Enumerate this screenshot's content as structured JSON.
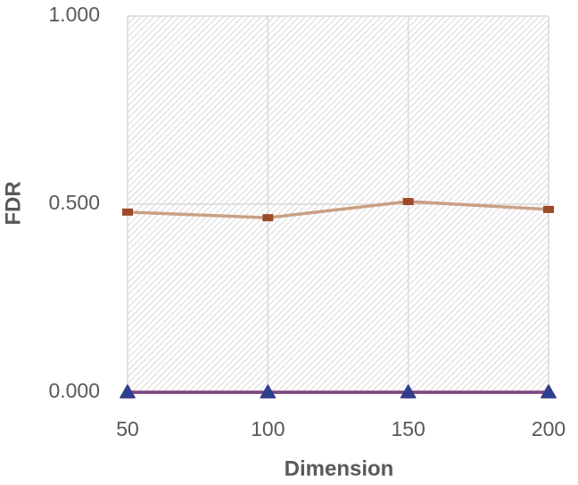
{
  "chart_data": {
    "type": "line",
    "x_label": "Dimension",
    "y_label": "FDR",
    "x": [
      50,
      100,
      150,
      200
    ],
    "xlim": [
      50,
      200
    ],
    "xticks": [
      50,
      100,
      150,
      200
    ],
    "ylim": [
      0,
      1
    ],
    "yticks": [
      {
        "value": 0,
        "label": "0.000"
      },
      {
        "value": 0.5,
        "label": "0.500"
      },
      {
        "value": 1,
        "label": "1.000"
      }
    ],
    "grid": true,
    "hatched_background": true,
    "series": [
      {
        "color": "#c9a084",
        "marker_color": "#9c4a26",
        "marker": "square",
        "values": [
          0.479,
          0.464,
          0.507,
          0.486
        ]
      },
      {
        "color": "#e03a2f",
        "marker_color": "#e03a2f",
        "marker": "triangle",
        "values": [
          0,
          0,
          0,
          0
        ]
      },
      {
        "color": "#7a4a86",
        "marker_color": "#2e3f8f",
        "marker": "triangle",
        "values": [
          0,
          0,
          0,
          0
        ]
      }
    ]
  }
}
